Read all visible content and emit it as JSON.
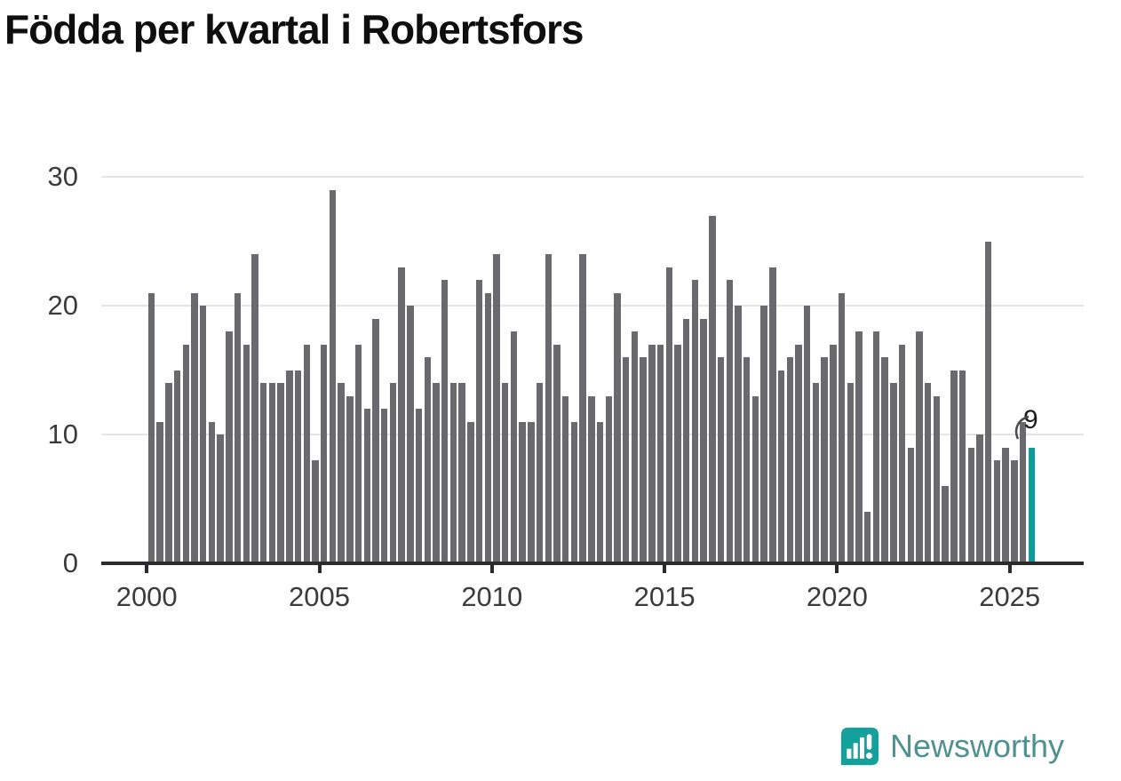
{
  "title": "Födda per kvartal i Robertsfors",
  "chart_data": {
    "type": "bar",
    "title": "Födda per kvartal i Robertsfors",
    "xlabel": "",
    "ylabel": "",
    "ylim": [
      0,
      30
    ],
    "grid": true,
    "legend": false,
    "y_ticks": [
      0,
      10,
      20,
      30
    ],
    "y_gridlines": [
      10,
      20,
      30
    ],
    "x_tick_labels": [
      "2000",
      "2005",
      "2010",
      "2015",
      "2020",
      "2025"
    ],
    "bar_color": "#69696e",
    "categories": [
      "2000-Q1",
      "2000-Q2",
      "2000-Q3",
      "2000-Q4",
      "2001-Q1",
      "2001-Q2",
      "2001-Q3",
      "2001-Q4",
      "2002-Q1",
      "2002-Q2",
      "2002-Q3",
      "2002-Q4",
      "2003-Q1",
      "2003-Q2",
      "2003-Q3",
      "2003-Q4",
      "2004-Q1",
      "2004-Q2",
      "2004-Q3",
      "2004-Q4",
      "2005-Q1",
      "2005-Q2",
      "2005-Q3",
      "2005-Q4",
      "2006-Q1",
      "2006-Q2",
      "2006-Q3",
      "2006-Q4",
      "2007-Q1",
      "2007-Q2",
      "2007-Q3",
      "2007-Q4",
      "2008-Q1",
      "2008-Q2",
      "2008-Q3",
      "2008-Q4",
      "2009-Q1",
      "2009-Q2",
      "2009-Q3",
      "2009-Q4",
      "2010-Q1",
      "2010-Q2",
      "2010-Q3",
      "2010-Q4",
      "2011-Q1",
      "2011-Q2",
      "2011-Q3",
      "2011-Q4",
      "2012-Q1",
      "2012-Q2",
      "2012-Q3",
      "2012-Q4",
      "2013-Q1",
      "2013-Q2",
      "2013-Q3",
      "2013-Q4",
      "2014-Q1",
      "2014-Q2",
      "2014-Q3",
      "2014-Q4",
      "2015-Q1",
      "2015-Q2",
      "2015-Q3",
      "2015-Q4",
      "2016-Q1",
      "2016-Q2",
      "2016-Q3",
      "2016-Q4",
      "2017-Q1",
      "2017-Q2",
      "2017-Q3",
      "2017-Q4",
      "2018-Q1",
      "2018-Q2",
      "2018-Q3",
      "2018-Q4",
      "2019-Q1",
      "2019-Q2",
      "2019-Q3",
      "2019-Q4",
      "2020-Q1",
      "2020-Q2",
      "2020-Q3",
      "2020-Q4",
      "2021-Q1",
      "2021-Q2",
      "2021-Q3",
      "2021-Q4",
      "2022-Q1",
      "2022-Q2",
      "2022-Q3",
      "2022-Q4",
      "2023-Q1",
      "2023-Q2",
      "2023-Q3",
      "2023-Q4",
      "2024-Q1",
      "2024-Q2",
      "2024-Q3",
      "2024-Q4",
      "2025-Q1",
      "2025-Q2",
      "2025-Q3"
    ],
    "values": [
      21,
      11,
      14,
      15,
      17,
      21,
      20,
      11,
      10,
      18,
      21,
      17,
      24,
      14,
      14,
      14,
      15,
      15,
      17,
      8,
      17,
      29,
      14,
      13,
      17,
      12,
      19,
      12,
      14,
      23,
      20,
      12,
      16,
      14,
      22,
      14,
      14,
      11,
      22,
      21,
      24,
      14,
      18,
      11,
      11,
      14,
      24,
      17,
      13,
      11,
      24,
      13,
      11,
      13,
      21,
      16,
      18,
      16,
      17,
      17,
      23,
      17,
      19,
      22,
      19,
      27,
      16,
      22,
      20,
      16,
      13,
      20,
      23,
      15,
      16,
      17,
      20,
      14,
      16,
      17,
      21,
      14,
      18,
      4,
      18,
      16,
      14,
      17,
      9,
      18,
      14,
      13,
      6,
      15,
      15,
      9,
      10,
      25,
      8,
      9,
      8,
      11,
      9
    ],
    "highlight": {
      "index": 102,
      "category": "2025-Q3",
      "value": 9,
      "label": "9",
      "color": "#0d9b9b"
    }
  },
  "branding": {
    "name": "Newsworthy",
    "icon": "newsworthy-logo",
    "icon_color": "#14a09b",
    "text_color": "#4e9290"
  }
}
